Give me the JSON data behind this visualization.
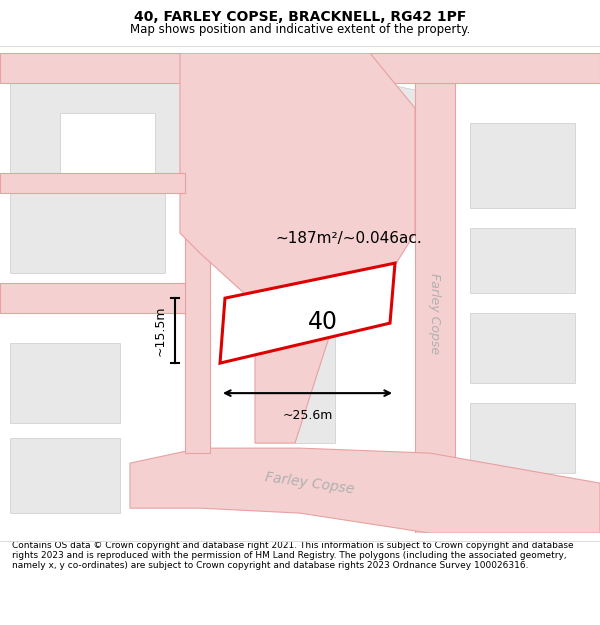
{
  "title": "40, FARLEY COPSE, BRACKNELL, RG42 1PF",
  "subtitle": "Map shows position and indicative extent of the property.",
  "footer": "Contains OS data © Crown copyright and database right 2021. This information is subject to Crown copyright and database rights 2023 and is reproduced with the permission of HM Land Registry. The polygons (including the associated geometry, namely x, y co-ordinates) are subject to Crown copyright and database rights 2023 Ordnance Survey 100026316.",
  "bg_color": "#ffffff",
  "map_bg": "#ffffff",
  "block_color": "#e8e8e8",
  "block_edge": "#cccccc",
  "road_color": "#f5d0d0",
  "road_edge": "#e8a0a0",
  "property_outline": "#dd0000",
  "property_fill": "#ffffff",
  "area_text": "~187m²/~0.046ac.",
  "property_number": "40",
  "dim_width": "~25.6m",
  "dim_height": "~15.5m",
  "street_label_bottom": "Farley Copse",
  "street_label_right": "Farley Copse",
  "title_fontsize": 10,
  "subtitle_fontsize": 8.5,
  "footer_fontsize": 6.5
}
